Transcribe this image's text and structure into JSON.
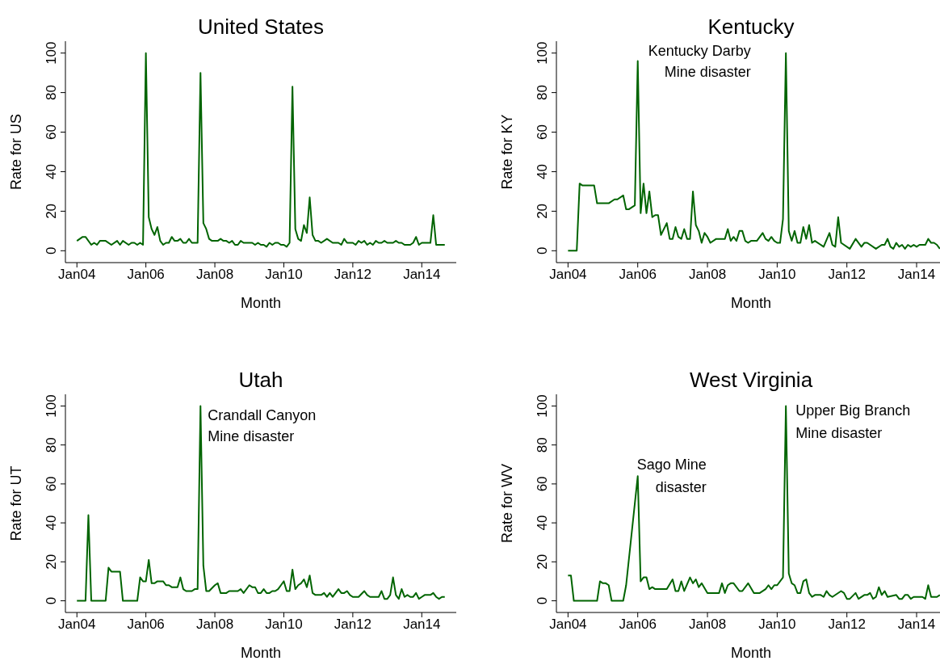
{
  "chart_data": [
    {
      "type": "line",
      "title": "United States",
      "xlabel": "Month",
      "ylabel": "Rate for US",
      "color": "#006400",
      "marker": "none",
      "x": [
        "2004-01",
        "2004-03",
        "2004-04",
        "2004-06",
        "2004-07",
        "2004-08",
        "2004-09",
        "2004-11",
        "2005-01",
        "2005-03",
        "2005-04",
        "2005-05",
        "2005-07",
        "2005-08",
        "2005-09",
        "2005-10",
        "2005-11",
        "2005-12",
        "2006-01",
        "2006-02",
        "2006-03",
        "2006-04",
        "2006-05",
        "2006-06",
        "2006-07",
        "2006-08",
        "2006-09",
        "2006-10",
        "2006-11",
        "2006-12",
        "2007-01",
        "2007-02",
        "2007-03",
        "2007-04",
        "2007-05",
        "2007-07",
        "2007-08",
        "2007-09",
        "2007-10",
        "2007-11",
        "2007-12",
        "2008-02",
        "2008-03",
        "2008-04",
        "2008-05",
        "2008-06",
        "2008-07",
        "2008-08",
        "2008-09",
        "2008-10",
        "2008-11",
        "2009-02",
        "2009-03",
        "2009-04",
        "2009-05",
        "2009-06",
        "2009-07",
        "2009-08",
        "2009-09",
        "2009-10",
        "2009-11",
        "2009-12",
        "2010-01",
        "2010-02",
        "2010-03",
        "2010-04",
        "2010-05",
        "2010-06",
        "2010-07",
        "2010-08",
        "2010-09",
        "2010-10",
        "2010-11",
        "2010-12",
        "2011-01",
        "2011-02",
        "2011-04",
        "2011-06",
        "2011-08",
        "2011-09",
        "2011-10",
        "2011-11",
        "2012-01",
        "2012-02",
        "2012-03",
        "2012-04",
        "2012-05",
        "2012-06",
        "2012-07",
        "2012-08",
        "2012-09",
        "2012-10",
        "2012-11",
        "2012-12",
        "2013-01",
        "2013-03",
        "2013-04",
        "2013-05",
        "2013-06",
        "2013-07",
        "2013-09",
        "2013-10",
        "2013-11",
        "2013-12",
        "2014-01",
        "2014-04",
        "2014-05",
        "2014-06",
        "2014-09"
      ],
      "values": [
        5,
        7,
        7,
        3,
        4,
        3,
        5,
        5,
        3,
        5,
        3,
        5,
        3,
        4,
        4,
        3,
        4,
        3,
        100,
        17,
        11,
        8,
        12,
        5,
        3,
        4,
        4,
        7,
        5,
        5,
        6,
        4,
        4,
        6,
        4,
        4,
        90,
        14,
        11,
        6,
        5,
        5,
        6,
        5,
        5,
        4,
        5,
        3,
        3,
        5,
        4,
        4,
        3,
        4,
        3,
        3,
        2,
        4,
        3,
        4,
        4,
        3,
        3,
        2,
        4,
        83,
        11,
        6,
        5,
        13,
        9,
        27,
        8,
        5,
        5,
        4,
        6,
        4,
        4,
        3,
        6,
        4,
        4,
        3,
        5,
        4,
        5,
        3,
        4,
        3,
        5,
        4,
        4,
        5,
        4,
        4,
        5,
        4,
        4,
        3,
        3,
        4,
        7,
        3,
        4,
        4,
        18,
        3,
        3
      ],
      "xlim": [
        "2003-09",
        "2015-01"
      ],
      "ylim": [
        -6,
        106
      ],
      "xticks": [
        {
          "value": "2004-01",
          "label": "Jan04"
        },
        {
          "value": "2006-01",
          "label": "Jan06"
        },
        {
          "value": "2008-01",
          "label": "Jan08"
        },
        {
          "value": "2010-01",
          "label": "Jan10"
        },
        {
          "value": "2012-01",
          "label": "Jan12"
        },
        {
          "value": "2014-01",
          "label": "Jan14"
        }
      ],
      "yticks": [
        0,
        20,
        40,
        60,
        80,
        100
      ]
    },
    {
      "type": "line",
      "title": "Kentucky",
      "xlabel": "Month",
      "ylabel": "Rate for KY",
      "color": "#006400",
      "marker": "none",
      "x": [
        "2004-01",
        "2004-04",
        "2004-05",
        "2004-06",
        "2004-10",
        "2004-11",
        "2005-03",
        "2005-05",
        "2005-06",
        "2005-08",
        "2005-09",
        "2005-10",
        "2005-12",
        "2006-01",
        "2006-02",
        "2006-03",
        "2006-04",
        "2006-05",
        "2006-06",
        "2006-07",
        "2006-08",
        "2006-09",
        "2006-11",
        "2006-12",
        "2007-01",
        "2007-02",
        "2007-03",
        "2007-04",
        "2007-05",
        "2007-06",
        "2007-07",
        "2007-08",
        "2007-09",
        "2007-10",
        "2007-11",
        "2007-12",
        "2008-01",
        "2008-02",
        "2008-04",
        "2008-07",
        "2008-08",
        "2008-09",
        "2008-10",
        "2008-11",
        "2008-12",
        "2009-01",
        "2009-02",
        "2009-03",
        "2009-04",
        "2009-06",
        "2009-08",
        "2009-09",
        "2009-10",
        "2009-11",
        "2009-12",
        "2010-01",
        "2010-02",
        "2010-03",
        "2010-04",
        "2010-05",
        "2010-06",
        "2010-07",
        "2010-08",
        "2010-09",
        "2010-10",
        "2010-11",
        "2010-12",
        "2011-01",
        "2011-02",
        "2011-05",
        "2011-07",
        "2011-08",
        "2011-09",
        "2011-10",
        "2011-11",
        "2012-02",
        "2012-04",
        "2012-06",
        "2012-07",
        "2012-08",
        "2012-11",
        "2013-01",
        "2013-02",
        "2013-03",
        "2013-04",
        "2013-05",
        "2013-06",
        "2013-07",
        "2013-08",
        "2013-09",
        "2013-10",
        "2013-11",
        "2013-12",
        "2014-01",
        "2014-02",
        "2014-04",
        "2014-05",
        "2014-06",
        "2014-07",
        "2014-08",
        "2014-09"
      ],
      "values": [
        0,
        0,
        34,
        33,
        33,
        24,
        24,
        26,
        26,
        28,
        21,
        21,
        23,
        96,
        19,
        34,
        19,
        30,
        17,
        18,
        18,
        8,
        14,
        6,
        6,
        12,
        7,
        6,
        11,
        6,
        6,
        30,
        13,
        10,
        4,
        9,
        7,
        4,
        6,
        6,
        11,
        5,
        7,
        5,
        10,
        10,
        5,
        4,
        5,
        5,
        9,
        6,
        5,
        7,
        5,
        4,
        4,
        16,
        100,
        10,
        5,
        10,
        4,
        4,
        12,
        6,
        13,
        4,
        5,
        2,
        9,
        3,
        2,
        17,
        4,
        1,
        6,
        2,
        4,
        4,
        1,
        3,
        3,
        6,
        2,
        1,
        4,
        2,
        3,
        1,
        3,
        2,
        3,
        2,
        3,
        3,
        6,
        4,
        4,
        3,
        1
      ],
      "xlim": [
        "2003-09",
        "2014-11"
      ],
      "ylim": [
        -6,
        106
      ],
      "xticks": [
        {
          "value": "2004-01",
          "label": "Jan04"
        },
        {
          "value": "2006-01",
          "label": "Jan06"
        },
        {
          "value": "2008-01",
          "label": "Jan08"
        },
        {
          "value": "2010-01",
          "label": "Jan10"
        },
        {
          "value": "2012-01",
          "label": "Jan12"
        },
        {
          "value": "2014-01",
          "label": "Jan14"
        }
      ],
      "yticks": [
        0,
        20,
        40,
        60,
        80,
        100
      ],
      "annotations": [
        {
          "text": "Kentucky Darby\nMine disaster",
          "x": "2006-01",
          "y": 96
        }
      ]
    },
    {
      "type": "line",
      "title": "Utah",
      "xlabel": "Month",
      "ylabel": "Rate for UT",
      "color": "#006400",
      "marker": "none",
      "x": [
        "2004-01",
        "2004-04",
        "2004-05",
        "2004-06",
        "2004-11",
        "2004-12",
        "2005-01",
        "2005-04",
        "2005-05",
        "2005-10",
        "2005-11",
        "2005-12",
        "2006-01",
        "2006-02",
        "2006-03",
        "2006-04",
        "2006-05",
        "2006-07",
        "2006-08",
        "2006-09",
        "2006-10",
        "2006-12",
        "2007-01",
        "2007-02",
        "2007-03",
        "2007-05",
        "2007-06",
        "2007-07",
        "2007-08",
        "2007-09",
        "2007-10",
        "2007-11",
        "2008-01",
        "2008-02",
        "2008-03",
        "2008-05",
        "2008-06",
        "2008-09",
        "2008-10",
        "2008-11",
        "2009-01",
        "2009-02",
        "2009-03",
        "2009-04",
        "2009-05",
        "2009-06",
        "2009-07",
        "2009-08",
        "2009-09",
        "2009-10",
        "2009-11",
        "2009-12",
        "2010-01",
        "2010-02",
        "2010-03",
        "2010-04",
        "2010-05",
        "2010-06",
        "2010-07",
        "2010-08",
        "2010-09",
        "2010-10",
        "2010-11",
        "2010-12",
        "2011-02",
        "2011-03",
        "2011-04",
        "2011-05",
        "2011-06",
        "2011-08",
        "2011-09",
        "2011-10",
        "2011-11",
        "2011-12",
        "2012-01",
        "2012-03",
        "2012-05",
        "2012-06",
        "2012-07",
        "2012-10",
        "2012-11",
        "2012-12",
        "2013-01",
        "2013-02",
        "2013-03",
        "2013-04",
        "2013-05",
        "2013-06",
        "2013-07",
        "2013-08",
        "2013-09",
        "2013-10",
        "2013-11",
        "2013-12",
        "2014-01",
        "2014-02",
        "2014-04",
        "2014-05",
        "2014-06",
        "2014-07",
        "2014-08",
        "2014-09"
      ],
      "values": [
        0,
        0,
        44,
        0,
        0,
        17,
        15,
        15,
        0,
        0,
        12,
        10,
        10,
        21,
        9,
        9,
        10,
        10,
        8,
        8,
        7,
        7,
        12,
        6,
        5,
        5,
        6,
        6,
        100,
        18,
        5,
        5,
        8,
        9,
        4,
        4,
        5,
        5,
        6,
        4,
        8,
        7,
        7,
        4,
        4,
        6,
        4,
        4,
        5,
        5,
        6,
        8,
        10,
        5,
        5,
        16,
        6,
        8,
        9,
        11,
        7,
        13,
        4,
        3,
        3,
        4,
        2,
        4,
        2,
        6,
        4,
        4,
        5,
        3,
        2,
        2,
        5,
        3,
        2,
        2,
        5,
        1,
        1,
        3,
        12,
        3,
        1,
        6,
        2,
        3,
        2,
        2,
        4,
        1,
        2,
        3,
        3,
        4,
        2,
        1,
        2,
        2
      ],
      "xlim": [
        "2003-09",
        "2015-01"
      ],
      "ylim": [
        -6,
        106
      ],
      "xticks": [
        {
          "value": "2004-01",
          "label": "Jan04"
        },
        {
          "value": "2006-01",
          "label": "Jan06"
        },
        {
          "value": "2008-01",
          "label": "Jan08"
        },
        {
          "value": "2010-01",
          "label": "Jan10"
        },
        {
          "value": "2012-01",
          "label": "Jan12"
        },
        {
          "value": "2014-01",
          "label": "Jan14"
        }
      ],
      "yticks": [
        0,
        20,
        40,
        60,
        80,
        100
      ],
      "annotations": [
        {
          "text": "Crandall Canyon\nMine disaster",
          "x": "2007-08",
          "y": 100
        }
      ]
    },
    {
      "type": "line",
      "title": "West Virginia",
      "xlabel": "Month",
      "ylabel": "Rate for WV",
      "color": "#006400",
      "marker": "none",
      "x": [
        "2004-01",
        "2004-02",
        "2004-03",
        "2004-11",
        "2004-12",
        "2005-01",
        "2005-02",
        "2005-03",
        "2005-04",
        "2005-08",
        "2005-09",
        "2006-01",
        "2006-02",
        "2006-03",
        "2006-04",
        "2006-05",
        "2006-06",
        "2006-07",
        "2006-11",
        "2007-01",
        "2007-02",
        "2007-03",
        "2007-04",
        "2007-05",
        "2007-07",
        "2007-08",
        "2007-09",
        "2007-10",
        "2007-11",
        "2008-01",
        "2008-05",
        "2008-06",
        "2008-07",
        "2008-08",
        "2008-09",
        "2008-10",
        "2008-12",
        "2009-01",
        "2009-03",
        "2009-05",
        "2009-07",
        "2009-09",
        "2009-10",
        "2009-11",
        "2009-12",
        "2010-01",
        "2010-03",
        "2010-04",
        "2010-05",
        "2010-06",
        "2010-07",
        "2010-08",
        "2010-09",
        "2010-10",
        "2010-11",
        "2010-12",
        "2011-01",
        "2011-02",
        "2011-04",
        "2011-05",
        "2011-06",
        "2011-07",
        "2011-08",
        "2011-11",
        "2011-12",
        "2012-01",
        "2012-02",
        "2012-04",
        "2012-05",
        "2012-07",
        "2012-08",
        "2012-09",
        "2012-10",
        "2012-11",
        "2012-12",
        "2013-01",
        "2013-02",
        "2013-03",
        "2013-06",
        "2013-07",
        "2013-08",
        "2013-09",
        "2013-10",
        "2013-11",
        "2013-12",
        "2014-03",
        "2014-04",
        "2014-05",
        "2014-06",
        "2014-08",
        "2014-09"
      ],
      "values": [
        13,
        13,
        0,
        0,
        10,
        9,
        9,
        8,
        0,
        0,
        8,
        64,
        10,
        12,
        12,
        6,
        7,
        6,
        6,
        11,
        5,
        5,
        10,
        5,
        12,
        9,
        11,
        7,
        9,
        4,
        4,
        9,
        4,
        8,
        9,
        9,
        5,
        5,
        9,
        4,
        4,
        6,
        8,
        6,
        8,
        8,
        12,
        100,
        14,
        9,
        8,
        4,
        4,
        10,
        11,
        4,
        2,
        3,
        3,
        2,
        5,
        3,
        2,
        5,
        4,
        1,
        1,
        4,
        1,
        3,
        3,
        4,
        1,
        2,
        7,
        3,
        5,
        2,
        3,
        1,
        1,
        3,
        3,
        1,
        2,
        2,
        1,
        8,
        2,
        2,
        3
      ],
      "xlim": [
        "2003-09",
        "2014-11"
      ],
      "ylim": [
        -6,
        106
      ],
      "xticks": [
        {
          "value": "2004-01",
          "label": "Jan04"
        },
        {
          "value": "2006-01",
          "label": "Jan06"
        },
        {
          "value": "2008-01",
          "label": "Jan08"
        },
        {
          "value": "2010-01",
          "label": "Jan10"
        },
        {
          "value": "2012-01",
          "label": "Jan12"
        },
        {
          "value": "2014-01",
          "label": "Jan14"
        }
      ],
      "yticks": [
        0,
        20,
        40,
        60,
        80,
        100
      ],
      "annotations": [
        {
          "text": "Sago Mine\ndisaster",
          "x": "2006-01",
          "y": 64
        },
        {
          "text": "Upper Big Branch\nMine disaster",
          "x": "2010-04",
          "y": 100
        }
      ]
    }
  ]
}
